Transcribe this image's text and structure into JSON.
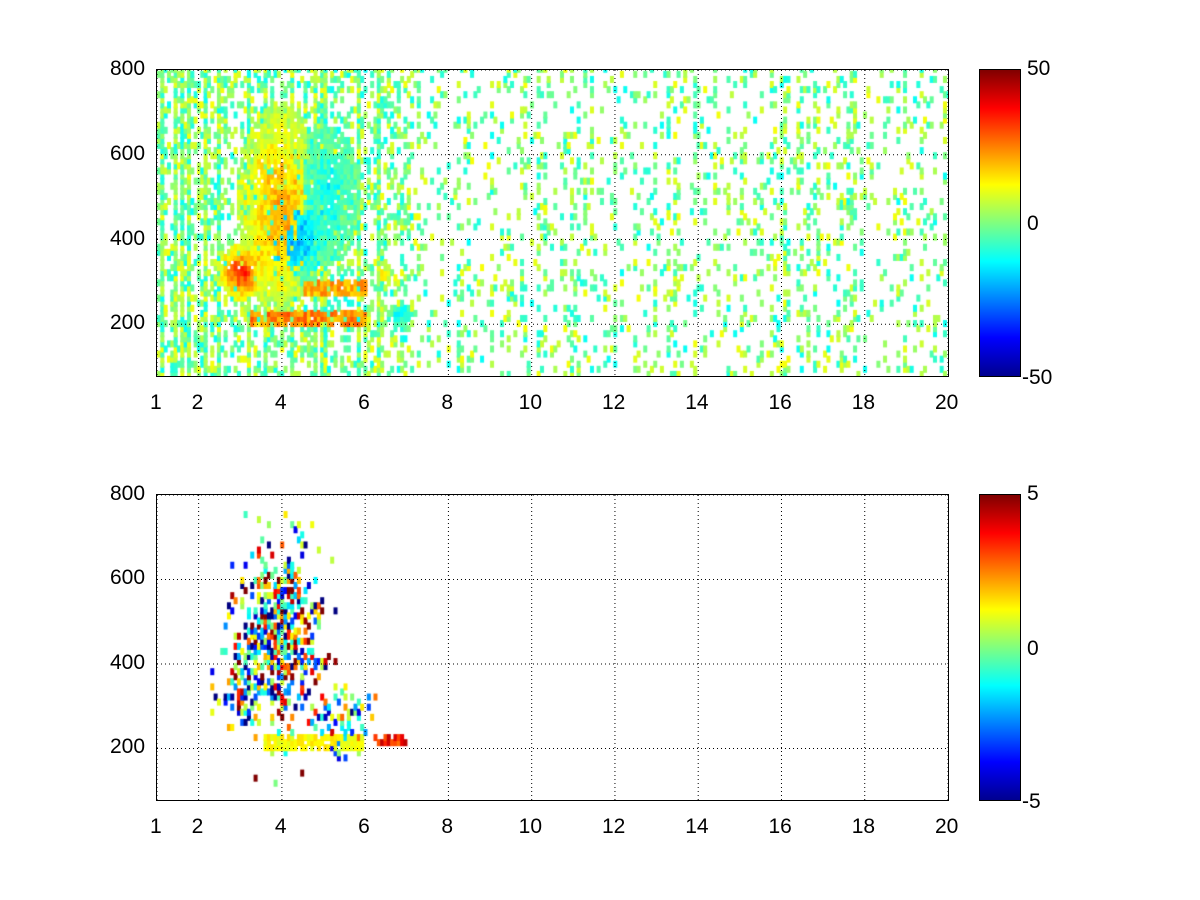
{
  "chart_data": [
    {
      "type": "heatmap",
      "title": "",
      "xlabel": "",
      "ylabel": "",
      "xlim": [
        1,
        20
      ],
      "ylim": [
        78,
        800
      ],
      "xticks": [
        "1",
        "2",
        "4",
        "6",
        "8",
        "10",
        "12",
        "14",
        "16",
        "18",
        "20"
      ],
      "xtick_values": [
        1,
        2,
        4,
        6,
        8,
        10,
        12,
        14,
        16,
        18,
        20
      ],
      "yticks": [
        "200",
        "400",
        "600",
        "800"
      ],
      "ytick_values": [
        200,
        400,
        600,
        800
      ],
      "grid": true,
      "colormap": "jet",
      "clim": [
        -50,
        50
      ],
      "colorbar_ticks": [
        "50",
        "0",
        "-50"
      ],
      "features": [
        {
          "kind": "blob",
          "x": 3.0,
          "y": 320,
          "sx": 0.35,
          "sy": 40,
          "value": 32
        },
        {
          "kind": "blob",
          "x": 3.9,
          "y": 470,
          "sx": 0.6,
          "sy": 150,
          "value": 20
        },
        {
          "kind": "blob",
          "x": 4.3,
          "y": 400,
          "sx": 0.45,
          "sy": 70,
          "value": -22
        },
        {
          "kind": "blob",
          "x": 5.0,
          "y": 500,
          "sx": 0.5,
          "sy": 100,
          "value": -10
        },
        {
          "kind": "band",
          "x0": 3.2,
          "x1": 6.0,
          "y": 210,
          "sy": 12,
          "value": 28
        },
        {
          "kind": "band",
          "x0": 4.5,
          "x1": 6.0,
          "y": 285,
          "sy": 12,
          "value": 24
        },
        {
          "kind": "blob",
          "x": 6.8,
          "y": 220,
          "sx": 0.2,
          "sy": 15,
          "value": -14
        },
        {
          "kind": "blob",
          "x": 6.4,
          "y": 310,
          "sx": 0.1,
          "sy": 20,
          "value": 18
        }
      ],
      "noise_density": 0.35,
      "noise_range": [
        -12,
        12
      ]
    },
    {
      "type": "heatmap",
      "title": "",
      "xlabel": "",
      "ylabel": "",
      "xlim": [
        1,
        20
      ],
      "ylim": [
        78,
        800
      ],
      "xticks": [
        "1",
        "2",
        "4",
        "6",
        "8",
        "10",
        "12",
        "14",
        "16",
        "18",
        "20"
      ],
      "xtick_values": [
        1,
        2,
        4,
        6,
        8,
        10,
        12,
        14,
        16,
        18,
        20
      ],
      "yticks": [
        "200",
        "400",
        "600",
        "800"
      ],
      "ytick_values": [
        200,
        400,
        600,
        800
      ],
      "grid": true,
      "colormap": "jet",
      "clim": [
        -5,
        5
      ],
      "colorbar_ticks": [
        "5",
        "0",
        "-5"
      ],
      "features": [
        {
          "kind": "scatter",
          "x": 3.9,
          "y": 450,
          "sx": 0.55,
          "sy": 120,
          "value": 0,
          "spread": 5,
          "density": 0.55
        },
        {
          "kind": "scatter",
          "x": 3.0,
          "y": 330,
          "sx": 0.3,
          "sy": 40,
          "value": -1,
          "spread": 4,
          "density": 0.5
        },
        {
          "kind": "band",
          "x0": 3.5,
          "x1": 5.9,
          "y": 210,
          "sy": 8,
          "value": 1.5
        },
        {
          "kind": "scatter",
          "x": 5.5,
          "y": 270,
          "sx": 0.35,
          "sy": 40,
          "value": -0.5,
          "spread": 3,
          "density": 0.35
        },
        {
          "kind": "band",
          "x0": 6.2,
          "x1": 7.0,
          "y": 215,
          "sy": 5,
          "value": 4
        }
      ],
      "noise_density": 0.0,
      "noise_range": [
        -5,
        5
      ]
    }
  ]
}
